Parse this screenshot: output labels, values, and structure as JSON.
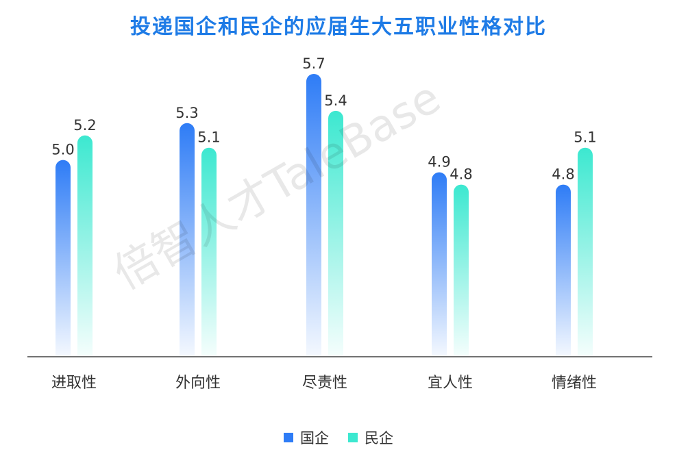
{
  "chart_data": {
    "type": "bar",
    "title": "投递国企和民企的应届生大五职业性格对比",
    "categories": [
      "进取性",
      "外向性",
      "尽责性",
      "宜人性",
      "情绪性"
    ],
    "series": [
      {
        "name": "国企",
        "values": [
          5.0,
          5.3,
          5.7,
          4.9,
          4.8
        ],
        "color": "#2e7cf6"
      },
      {
        "name": "民企",
        "values": [
          5.2,
          5.1,
          5.4,
          4.8,
          5.1
        ],
        "color": "#3ce8d0"
      }
    ],
    "ylim": [
      3.4,
      5.8
    ],
    "grid": false,
    "legend_placement": "bottom-center",
    "watermark": "倍智人才TaleBase"
  }
}
